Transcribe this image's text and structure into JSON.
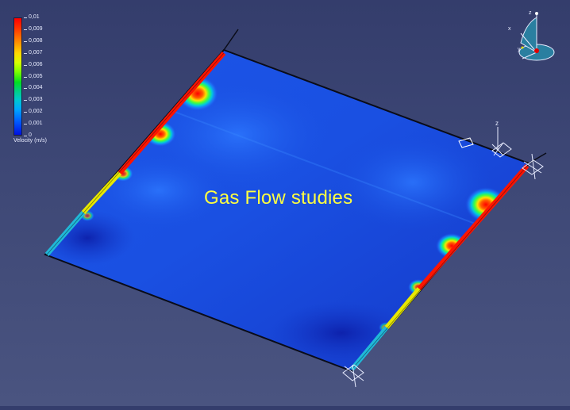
{
  "title": "Gas Flow studies",
  "legend": {
    "labels": [
      "0,01",
      "0,009",
      "0,008",
      "0,007",
      "0,006",
      "0,005",
      "0,004",
      "0,003",
      "0,002",
      "0,001",
      "0"
    ],
    "title": "Velocity (m/s)"
  },
  "compass": {
    "axis_x": "x",
    "axis_y": "y",
    "axis_z": "z"
  },
  "support_axis": "z",
  "colors": {
    "background": "#3e4876",
    "plate": "#1a4fe0",
    "title": "#ffff40",
    "hot": "#ff1400",
    "warm": "#f0e000",
    "cool": "#20b8d8"
  }
}
